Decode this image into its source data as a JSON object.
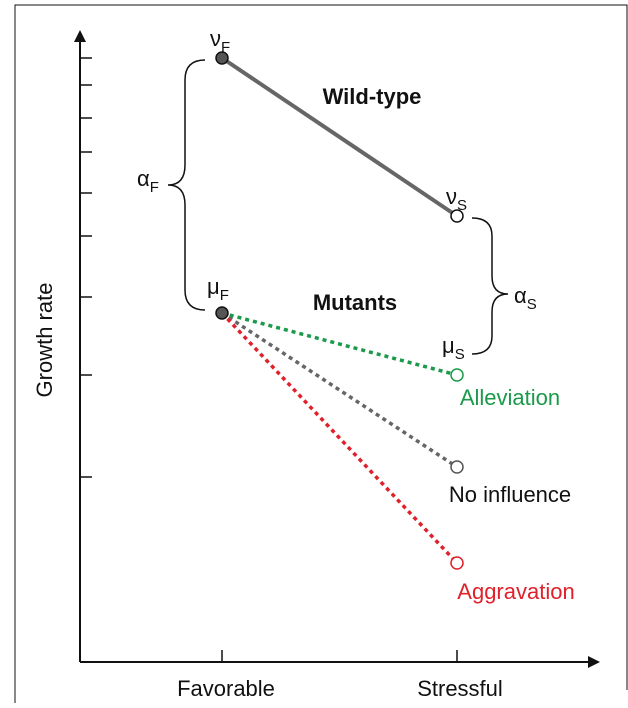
{
  "axis": {
    "y_label": "Growth rate",
    "x_labels": [
      "Favorable",
      "Stressful"
    ]
  },
  "groups": {
    "wild_type": "Wild-type",
    "mutants": "Mutants"
  },
  "symbols": {
    "nu_f": {
      "symbol": "ν",
      "sub": "F"
    },
    "nu_s": {
      "symbol": "ν",
      "sub": "S"
    },
    "mu_f": {
      "symbol": "μ",
      "sub": "F"
    },
    "mu_s": {
      "symbol": "μ",
      "sub": "S"
    },
    "alpha_f": {
      "symbol": "α",
      "sub": "F"
    },
    "alpha_s": {
      "symbol": "α",
      "sub": "S"
    }
  },
  "outcomes": [
    "Alleviation",
    "No influence",
    "Aggravation"
  ]
}
